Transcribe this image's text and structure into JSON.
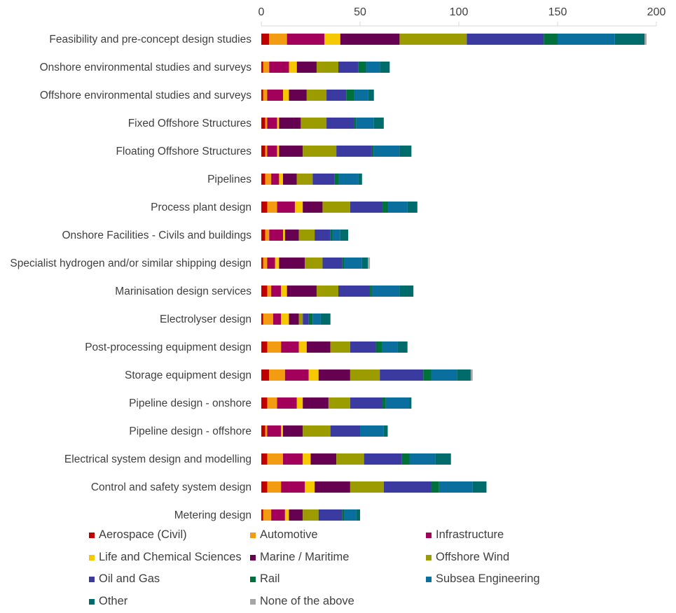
{
  "chart_data": {
    "type": "bar",
    "orientation": "horizontal",
    "stacked": true,
    "title": "",
    "xlabel": "",
    "ylabel": "",
    "xlim": [
      0,
      200
    ],
    "x_ticks": [
      0,
      50,
      100,
      150,
      200
    ],
    "axis_position": "top",
    "grid": false,
    "legend_position": "bottom",
    "categories": [
      "Feasibility and pre-concept design studies",
      "Onshore environmental studies and surveys",
      "Offshore environmental studies and surveys",
      "Fixed Offshore Structures",
      "Floating Offshore Structures",
      "Pipelines",
      "Process plant design",
      "Onshore Facilities - Civils and buildings",
      "Specialist hydrogen and/or similar shipping design",
      "Marinisation design services",
      "Electrolyser design",
      "Post-processing equipment design",
      "Storage equipment design",
      "Pipeline design - onshore",
      "Pipeline design - offshore",
      "Electrical system design and modelling",
      "Control and safety system design",
      "Metering design"
    ],
    "series": [
      {
        "name": "Aerospace (Civil)",
        "color": "#c00000",
        "values": [
          4,
          1,
          1,
          2,
          2,
          2,
          3,
          2,
          1,
          3,
          1,
          3,
          4,
          3,
          2,
          3,
          3,
          1
        ]
      },
      {
        "name": "Automotive",
        "color": "#f39c12",
        "values": [
          9,
          3,
          2,
          1,
          1,
          3,
          5,
          2,
          2,
          2,
          5,
          7,
          8,
          5,
          1,
          8,
          7,
          4
        ]
      },
      {
        "name": "Infrastructure",
        "color": "#a3005c",
        "values": [
          19,
          10,
          8,
          5,
          5,
          4,
          9,
          7,
          4,
          5,
          4,
          9,
          12,
          10,
          7,
          10,
          12,
          7
        ]
      },
      {
        "name": "Life and Chemical Sciences",
        "color": "#f5c800",
        "values": [
          8,
          4,
          3,
          1,
          1,
          2,
          4,
          1,
          2,
          3,
          4,
          4,
          5,
          3,
          1,
          4,
          5,
          2
        ]
      },
      {
        "name": "Marine / Maritime",
        "color": "#660050",
        "values": [
          30,
          10,
          9,
          11,
          12,
          7,
          10,
          7,
          13,
          15,
          5,
          12,
          16,
          13,
          10,
          13,
          18,
          7
        ]
      },
      {
        "name": "Offshore Wind",
        "color": "#9c9c00",
        "values": [
          34,
          11,
          10,
          13,
          17,
          8,
          14,
          8,
          9,
          11,
          2,
          10,
          15,
          11,
          14,
          14,
          17,
          8
        ]
      },
      {
        "name": "Oil and Gas",
        "color": "#3a3aa0",
        "values": [
          39,
          10,
          10,
          14,
          18,
          11,
          16,
          8,
          10,
          16,
          3,
          13,
          22,
          16,
          15,
          19,
          24,
          12
        ]
      },
      {
        "name": "Rail",
        "color": "#00703c",
        "values": [
          7,
          4,
          4,
          1,
          1,
          2,
          3,
          1,
          1,
          1,
          2,
          3,
          4,
          2,
          0,
          4,
          4,
          1
        ]
      },
      {
        "name": "Subsea Engineering",
        "color": "#0a6e9e",
        "values": [
          29,
          7,
          7,
          9,
          13,
          10,
          10,
          4,
          9,
          14,
          4,
          8,
          13,
          12,
          12,
          13,
          17,
          6
        ]
      },
      {
        "name": "Other",
        "color": "#006b6b",
        "values": [
          15,
          5,
          3,
          5,
          6,
          2,
          5,
          4,
          3,
          7,
          5,
          5,
          7,
          1,
          2,
          8,
          7,
          2
        ]
      },
      {
        "name": "None of the above",
        "color": "#a6a6a6",
        "values": [
          1,
          0,
          0,
          0,
          0,
          0,
          0,
          0,
          1,
          0,
          0,
          0,
          1,
          0,
          0,
          0,
          0,
          0
        ]
      }
    ]
  }
}
